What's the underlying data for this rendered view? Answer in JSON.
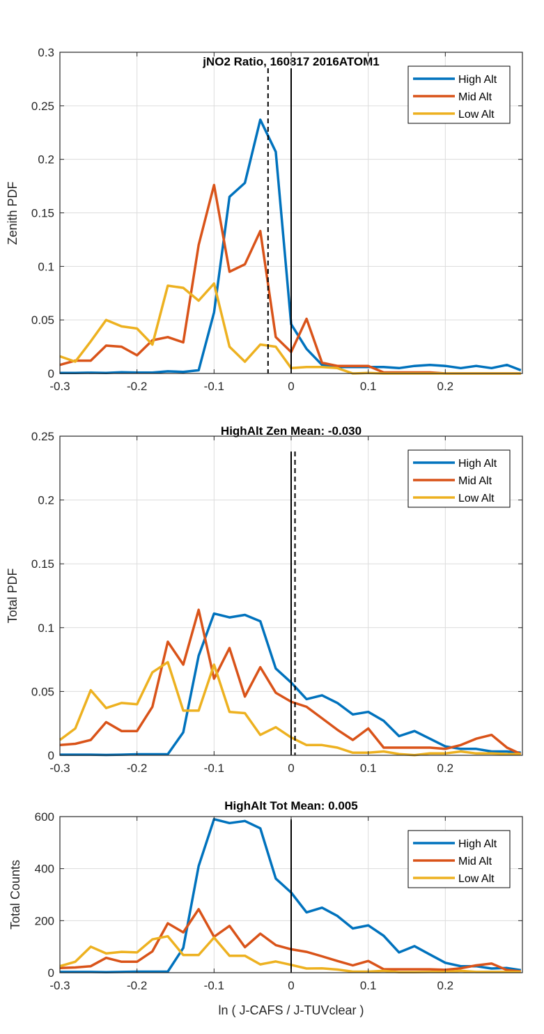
{
  "figure": {
    "xlabel": "ln ( J-CAFS / J-TUVclear )"
  },
  "colors": {
    "high": "#0072BD",
    "mid": "#D95319",
    "low": "#EDB120",
    "grid": "#dcdcdc",
    "axis": "#262626"
  },
  "chart_data": [
    {
      "type": "line",
      "title": "jNO2 Ratio, 160817 2016ATOM1",
      "xlabel": "",
      "ylabel": "Zenith PDF",
      "xlim": [
        -0.3,
        0.3
      ],
      "ylim": [
        0,
        0.3
      ],
      "xticks": [
        "-0.3",
        "-0.2",
        "-0.1",
        "0",
        "0.1",
        "0.2"
      ],
      "yticks": [
        "0",
        "0.05",
        "0.1",
        "0.15",
        "0.2",
        "0.25",
        "0.3"
      ],
      "grid": true,
      "legend": {
        "position": "top-right",
        "entries": [
          "High Alt",
          "Mid Alt",
          "Low Alt"
        ]
      },
      "vlines": [
        {
          "x": 0,
          "style": "solid",
          "top": 0.285
        },
        {
          "x": -0.03,
          "style": "dashed",
          "top": 0.285
        }
      ],
      "x": [
        -0.3,
        -0.28,
        -0.26,
        -0.24,
        -0.22,
        -0.2,
        -0.18,
        -0.16,
        -0.14,
        -0.12,
        -0.1,
        -0.08,
        -0.06,
        -0.04,
        -0.02,
        0,
        0.02,
        0.04,
        0.06,
        0.08,
        0.1,
        0.12,
        0.14,
        0.16,
        0.18,
        0.2,
        0.22,
        0.24,
        0.26,
        0.28,
        0.298
      ],
      "series": [
        {
          "name": "High Alt",
          "values": [
            0.0005,
            0.0005,
            0.0007,
            0.0005,
            0.0012,
            0.0008,
            0.0008,
            0.002,
            0.0015,
            0.003,
            0.057,
            0.165,
            0.178,
            0.237,
            0.207,
            0.046,
            0.023,
            0.008,
            0.006,
            0.006,
            0.006,
            0.006,
            0.005,
            0.007,
            0.008,
            0.007,
            0.005,
            0.007,
            0.005,
            0.008,
            0.003
          ]
        },
        {
          "name": "Mid Alt",
          "values": [
            0.008,
            0.012,
            0.012,
            0.026,
            0.025,
            0.017,
            0.031,
            0.034,
            0.029,
            0.12,
            0.176,
            0.095,
            0.102,
            0.133,
            0.034,
            0.02,
            0.051,
            0.01,
            0.007,
            0.007,
            0.007,
            0.001,
            0.001,
            0.001,
            0.001,
            0,
            0,
            0,
            0,
            0,
            0
          ]
        },
        {
          "name": "Low Alt",
          "values": [
            0.016,
            0.011,
            0.03,
            0.05,
            0.044,
            0.042,
            0.027,
            0.082,
            0.08,
            0.068,
            0.084,
            0.025,
            0.011,
            0.027,
            0.025,
            0.005,
            0.006,
            0.006,
            0.005,
            0,
            0.0005,
            0,
            0,
            0,
            0,
            0,
            0,
            0,
            0,
            0,
            0
          ]
        }
      ]
    },
    {
      "type": "line",
      "title": "HighAlt Zen Mean: -0.030",
      "xlabel": "",
      "ylabel": "Total PDF",
      "xlim": [
        -0.3,
        0.3
      ],
      "ylim": [
        0,
        0.25
      ],
      "xticks": [
        "-0.3",
        "-0.2",
        "-0.1",
        "0",
        "0.1",
        "0.2"
      ],
      "yticks": [
        "0",
        "0.05",
        "0.1",
        "0.15",
        "0.2",
        "0.25"
      ],
      "grid": true,
      "legend": {
        "position": "top-right",
        "entries": [
          "High Alt",
          "Mid Alt",
          "Low Alt"
        ]
      },
      "vlines": [
        {
          "x": 0,
          "style": "solid",
          "top": 0.238
        },
        {
          "x": 0.005,
          "style": "dashed",
          "top": 0.238
        }
      ],
      "x": [
        -0.3,
        -0.28,
        -0.26,
        -0.24,
        -0.22,
        -0.2,
        -0.18,
        -0.16,
        -0.14,
        -0.12,
        -0.1,
        -0.08,
        -0.06,
        -0.04,
        -0.02,
        0,
        0.02,
        0.04,
        0.06,
        0.08,
        0.1,
        0.12,
        0.14,
        0.16,
        0.18,
        0.2,
        0.22,
        0.24,
        0.26,
        0.28,
        0.298
      ],
      "series": [
        {
          "name": "High Alt",
          "values": [
            0.0005,
            0.0005,
            0.0005,
            0.0003,
            0.0005,
            0.0008,
            0.0008,
            0.0008,
            0.018,
            0.078,
            0.111,
            0.108,
            0.11,
            0.105,
            0.068,
            0.057,
            0.044,
            0.047,
            0.041,
            0.032,
            0.034,
            0.027,
            0.015,
            0.019,
            0.013,
            0.007,
            0.005,
            0.005,
            0.003,
            0.003,
            0.002
          ]
        },
        {
          "name": "Mid Alt",
          "values": [
            0.008,
            0.009,
            0.012,
            0.026,
            0.019,
            0.019,
            0.038,
            0.089,
            0.071,
            0.114,
            0.06,
            0.084,
            0.046,
            0.069,
            0.049,
            0.042,
            0.038,
            0.029,
            0.02,
            0.012,
            0.021,
            0.006,
            0.006,
            0.006,
            0.006,
            0.005,
            0.008,
            0.013,
            0.016,
            0.006,
            0.001
          ]
        },
        {
          "name": "Low Alt",
          "values": [
            0.012,
            0.021,
            0.051,
            0.037,
            0.041,
            0.04,
            0.065,
            0.073,
            0.035,
            0.035,
            0.071,
            0.034,
            0.033,
            0.016,
            0.022,
            0.014,
            0.008,
            0.008,
            0.006,
            0.002,
            0.002,
            0.003,
            0.001,
            0.0001,
            0.0015,
            0.0015,
            0.003,
            0.0015,
            0.0015,
            0.001,
            0.001
          ]
        }
      ]
    },
    {
      "type": "line",
      "title": "HighAlt Tot Mean: 0.005",
      "xlabel": "ln ( J-CAFS / J-TUVclear )",
      "ylabel": "Total Counts",
      "xlim": [
        -0.3,
        0.3
      ],
      "ylim": [
        0,
        600
      ],
      "xticks": [
        "-0.3",
        "-0.2",
        "-0.1",
        "0",
        "0.1",
        "0.2"
      ],
      "yticks": [
        "0",
        "200",
        "400",
        "600"
      ],
      "grid": true,
      "legend": {
        "position": "top-right",
        "entries": [
          "High Alt",
          "Mid Alt",
          "Low Alt"
        ]
      },
      "vlines": [
        {
          "x": 0,
          "style": "solid",
          "top": 590
        }
      ],
      "x": [
        -0.3,
        -0.28,
        -0.26,
        -0.24,
        -0.22,
        -0.2,
        -0.18,
        -0.16,
        -0.14,
        -0.12,
        -0.1,
        -0.08,
        -0.06,
        -0.04,
        -0.02,
        0,
        0.02,
        0.04,
        0.06,
        0.08,
        0.1,
        0.12,
        0.14,
        0.16,
        0.18,
        0.2,
        0.22,
        0.24,
        0.26,
        0.28,
        0.298
      ],
      "series": [
        {
          "name": "High Alt",
          "values": [
            3,
            3,
            3,
            2,
            3,
            4,
            4,
            4,
            95,
            410,
            590,
            575,
            583,
            555,
            362,
            308,
            232,
            250,
            218,
            170,
            182,
            142,
            78,
            102,
            70,
            38,
            25,
            25,
            16,
            18,
            10
          ]
        },
        {
          "name": "Mid Alt",
          "values": [
            18,
            20,
            25,
            57,
            42,
            42,
            82,
            190,
            155,
            244,
            138,
            180,
            98,
            150,
            106,
            90,
            80,
            63,
            45,
            28,
            45,
            13,
            13,
            13,
            13,
            11,
            17,
            28,
            35,
            10,
            5
          ]
        },
        {
          "name": "Low Alt",
          "values": [
            25,
            42,
            100,
            74,
            80,
            78,
            128,
            140,
            68,
            68,
            135,
            65,
            65,
            32,
            43,
            30,
            16,
            17,
            12,
            4,
            4,
            7,
            2,
            2,
            3,
            3,
            7,
            3,
            3,
            3,
            3
          ]
        }
      ]
    }
  ]
}
